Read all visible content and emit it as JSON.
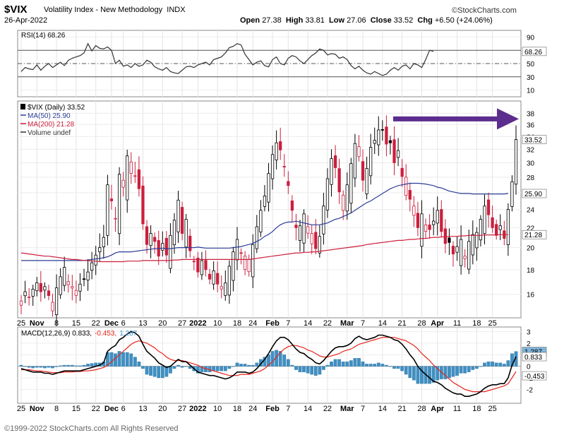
{
  "header": {
    "ticker": "$VIX",
    "description": "Volatility Index - New Methodology",
    "exchange": "INDX",
    "date": "26-Apr-2022",
    "brand": "©StockCharts.com",
    "open_label": "Open",
    "open": "27.38",
    "high_label": "High",
    "high": "33.81",
    "low_label": "Low",
    "low": "27.06",
    "close_label": "Close",
    "close": "33.52",
    "chg_label": "Chg",
    "chg": "+6.50 (+24.06%)"
  },
  "footer": {
    "copyright": "©1999-2022 StockCharts.com All Rights Reserved"
  },
  "colors": {
    "up": "#000000",
    "down": "#cc1e3c",
    "ma50": "#2c3c96",
    "ma200": "#cc1e3c",
    "arrow": "#5b2d8e",
    "macd_hist": "#3f8fc3",
    "signal": "#e8231b"
  },
  "chart_data": [
    {
      "id": "rsi",
      "type": "line",
      "legend": "RSI(14) 68.26",
      "ylim": [
        0,
        100
      ],
      "yticks": [
        10,
        30,
        50,
        70,
        90
      ],
      "ref_lines": [
        30,
        50,
        70
      ],
      "last": 68.26,
      "last_label": "68.26",
      "values": [
        38,
        44,
        42,
        41,
        48,
        40,
        46,
        50,
        44,
        48,
        52,
        47,
        55,
        58,
        60,
        62,
        66,
        80,
        69,
        77,
        73,
        72,
        75,
        70,
        50,
        55,
        46,
        48,
        44,
        50,
        46,
        48,
        55,
        52,
        45,
        42,
        40,
        44,
        38,
        36,
        35,
        40,
        45,
        46,
        44,
        48,
        50,
        52,
        48,
        56,
        58,
        60,
        66,
        74,
        76,
        80,
        78,
        64,
        56,
        48,
        52,
        54,
        47,
        45,
        56,
        60,
        50,
        48,
        58,
        62,
        60,
        54,
        50,
        56,
        62,
        66,
        72,
        70,
        63,
        65,
        64,
        58,
        60,
        56,
        47,
        42,
        46,
        40,
        36,
        34,
        38,
        35,
        32,
        34,
        40,
        44,
        40,
        46,
        48,
        42,
        50,
        48,
        44,
        56,
        70,
        68.26
      ]
    },
    {
      "id": "price",
      "type": "candlestick",
      "title": "$VIX (Daily) 33.52",
      "legend": [
        {
          "label": "MA(50) 25.90",
          "color": "#2c3c96"
        },
        {
          "label": "MA(200) 21.28",
          "color": "#cc1e3c"
        },
        {
          "label": "Volume undef",
          "color": "#333333"
        }
      ],
      "ylim": [
        14.3,
        40.3
      ],
      "scale": "log",
      "yticks": [
        16,
        18,
        20,
        22,
        24,
        26,
        28,
        30,
        32,
        34,
        36,
        38
      ],
      "last_close": 33.52,
      "last_close_label": "33.52",
      "ma50_last": 25.9,
      "ma50_label": "25.90",
      "ma200_last": 21.28,
      "ma200_label": "21.28",
      "closes": [
        15.5,
        16.2,
        15.8,
        16.4,
        16.9,
        16.2,
        16.6,
        15.9,
        15.4,
        16.5,
        17.4,
        18.2,
        17.0,
        16.6,
        16.3,
        16.8,
        17.2,
        17.8,
        18.6,
        19.3,
        20.0,
        21.0,
        27.0,
        25.0,
        23.0,
        28.4,
        27.6,
        31.0,
        30.1,
        28.2,
        26.5,
        22.4,
        20.3,
        21.4,
        20.6,
        19.2,
        20.4,
        19.3,
        21.2,
        22.8,
        25.1,
        21.4,
        22.9,
        19.7,
        18.7,
        17.8,
        18.8,
        18.0,
        17.2,
        17.9,
        16.8,
        16.6,
        16.9,
        18.3,
        19.6,
        20.8,
        19.5,
        19.2,
        18.9,
        20.3,
        22.1,
        23.9,
        25.6,
        28.5,
        31.2,
        33.0,
        31.9,
        29.4,
        26.9,
        23.9,
        22.0,
        22.2,
        23.5,
        22.1,
        21.4,
        19.9,
        21.1,
        24.4,
        27.8,
        30.6,
        29.3,
        26.1,
        25.7,
        27.0,
        29.9,
        32.9,
        32.4,
        27.6,
        29.2,
        32.3,
        33.4,
        35.1,
        35.1,
        32.8,
        33.0,
        30.0,
        31.8,
        28.1,
        28.0,
        25.2,
        24.4,
        22.0,
        23.5,
        22.3,
        21.8,
        22.7,
        23.9,
        21.6,
        20.4,
        20.5,
        19.4,
        20.1,
        20.8,
        19.2,
        20.6,
        21.3,
        21.5,
        22.9,
        24.4,
        23.4,
        22.0,
        21.2,
        22.2,
        20.9,
        24.0,
        27.4,
        33.52
      ],
      "ma50": [
        18.8,
        18.8,
        18.8,
        18.8,
        18.8,
        18.8,
        18.8,
        18.8,
        18.8,
        18.8,
        18.8,
        18.8,
        18.8,
        18.8,
        18.8,
        18.8,
        18.8,
        18.85,
        18.9,
        18.95,
        19.0,
        19.05,
        19.15,
        19.3,
        19.5,
        19.6,
        19.6,
        19.6,
        19.6,
        19.65,
        19.7,
        19.75,
        19.8,
        19.85,
        19.9,
        19.9,
        19.95,
        19.9,
        19.9,
        19.95,
        20.0,
        20.0,
        20.0,
        20.0,
        20.0,
        20.05,
        20.0,
        19.95,
        19.95,
        19.95,
        19.95,
        19.95,
        19.95,
        19.95,
        20.0,
        20.05,
        20.1,
        20.2,
        20.3,
        20.4,
        20.6,
        20.8,
        21.1,
        21.3,
        21.6,
        22.0,
        22.3,
        22.5,
        22.6,
        22.6,
        22.7,
        22.6,
        22.5,
        22.4,
        22.3,
        22.3,
        22.3,
        22.4,
        22.5,
        22.7,
        22.9,
        23.0,
        23.2,
        23.4,
        23.6,
        23.9,
        24.2,
        24.5,
        24.8,
        25.0,
        25.3,
        25.6,
        25.9,
        26.2,
        26.5,
        26.7,
        26.9,
        27.0,
        27.1,
        27.2,
        27.2,
        27.2,
        27.15,
        27.1,
        27.0,
        26.9,
        26.7,
        26.6,
        26.4,
        26.2,
        26.1,
        26.0,
        25.9,
        25.9,
        25.9,
        25.85,
        25.85,
        25.85,
        25.85,
        25.85,
        25.85,
        25.85,
        25.85,
        25.85,
        25.9
      ],
      "ma200": [
        19.5,
        19.45,
        19.4,
        19.35,
        19.3,
        19.25,
        19.2,
        19.2,
        19.15,
        19.1,
        19.05,
        19.0,
        18.95,
        18.9,
        18.9,
        18.85,
        18.8,
        18.8,
        18.75,
        18.75,
        18.7,
        18.7,
        18.7,
        18.7,
        18.7,
        18.7,
        18.7,
        18.75,
        18.75,
        18.75,
        18.75,
        18.8,
        18.8,
        18.8,
        18.8,
        18.8,
        18.8,
        18.8,
        18.8,
        18.85,
        18.85,
        18.9,
        18.9,
        18.9,
        18.9,
        18.9,
        18.9,
        18.9,
        18.9,
        18.9,
        18.9,
        18.9,
        18.9,
        18.9,
        18.9,
        18.9,
        18.9,
        18.9,
        18.9,
        18.95,
        19.0,
        19.05,
        19.1,
        19.15,
        19.2,
        19.25,
        19.3,
        19.35,
        19.4,
        19.45,
        19.5,
        19.5,
        19.55,
        19.55,
        19.6,
        19.6,
        19.65,
        19.7,
        19.75,
        19.8,
        19.85,
        19.9,
        19.95,
        20.0,
        20.05,
        20.1,
        20.15,
        20.2,
        20.3,
        20.35,
        20.4,
        20.45,
        20.5,
        20.55,
        20.6,
        20.65,
        20.7,
        20.7,
        20.75,
        20.8,
        20.8,
        20.85,
        20.9,
        20.9,
        20.95,
        21.0,
        21.0,
        21.05,
        21.05,
        21.1,
        21.1,
        21.1,
        21.15,
        21.15,
        21.2,
        21.2,
        21.2,
        21.2,
        21.25,
        21.25,
        21.25,
        21.25,
        21.28,
        21.28,
        21.28
      ]
    },
    {
      "id": "macd",
      "type": "line+histogram",
      "legend": "MACD(12,26,9) 0.833, -0.453, 1.287",
      "legend_parts": [
        "MACD(12,26,9) 0.833,",
        "-0.453,",
        "1.287"
      ],
      "ylim": [
        -3.2,
        3.4
      ],
      "yticks": [
        -2,
        -1,
        0,
        1,
        2,
        3
      ],
      "macd_last": 0.833,
      "macd_label": "0.833",
      "signal_last": -0.453,
      "signal_label": "-0.453",
      "hist_last": 1.287,
      "hist_label": "1.287",
      "macd": [
        -0.2,
        -0.3,
        -0.4,
        -0.5,
        -0.5,
        -0.5,
        -0.6,
        -0.6,
        -0.7,
        -0.6,
        -0.5,
        -0.4,
        -0.4,
        -0.4,
        -0.4,
        -0.4,
        -0.3,
        -0.2,
        -0.1,
        0.0,
        0.1,
        0.3,
        1.3,
        1.6,
        1.8,
        2.3,
        2.5,
        2.8,
        3.0,
        2.9,
        2.6,
        1.9,
        1.3,
        1.0,
        0.7,
        0.3,
        0.1,
        -0.1,
        0.0,
        0.3,
        0.6,
        0.4,
        0.4,
        0.1,
        -0.2,
        -0.5,
        -0.6,
        -0.7,
        -0.8,
        -0.8,
        -0.9,
        -1.0,
        -1.1,
        -1.0,
        -0.8,
        -0.5,
        -0.5,
        -0.5,
        -0.6,
        -0.5,
        -0.2,
        0.2,
        0.6,
        1.1,
        1.7,
        2.2,
        2.5,
        2.5,
        2.3,
        1.9,
        1.5,
        1.2,
        1.1,
        0.8,
        0.6,
        0.3,
        0.2,
        0.5,
        0.9,
        1.3,
        1.6,
        1.7,
        1.7,
        1.8,
        2.0,
        2.4,
        2.6,
        2.4,
        2.3,
        2.4,
        2.5,
        2.7,
        2.7,
        2.6,
        2.5,
        2.3,
        2.2,
        1.9,
        1.5,
        1.0,
        0.6,
        0.0,
        -0.4,
        -0.7,
        -1.0,
        -1.3,
        -1.4,
        -1.6,
        -1.9,
        -2.1,
        -2.3,
        -2.4,
        -2.4,
        -2.6,
        -2.6,
        -2.5,
        -2.4,
        -2.2,
        -1.9,
        -1.7,
        -1.6,
        -1.6,
        -1.5,
        -1.5,
        -1.0,
        0.1,
        0.833
      ],
      "signal": [
        -0.3,
        -0.3,
        -0.3,
        -0.35,
        -0.4,
        -0.4,
        -0.45,
        -0.5,
        -0.55,
        -0.55,
        -0.55,
        -0.5,
        -0.5,
        -0.5,
        -0.45,
        -0.45,
        -0.4,
        -0.4,
        -0.35,
        -0.3,
        -0.2,
        -0.1,
        0.1,
        0.4,
        0.7,
        1.0,
        1.3,
        1.6,
        1.9,
        2.1,
        2.2,
        2.1,
        2.0,
        1.8,
        1.6,
        1.3,
        1.1,
        0.8,
        0.6,
        0.5,
        0.5,
        0.5,
        0.4,
        0.3,
        0.2,
        0.1,
        -0.1,
        -0.2,
        -0.3,
        -0.4,
        -0.5,
        -0.6,
        -0.7,
        -0.8,
        -0.8,
        -0.8,
        -0.7,
        -0.7,
        -0.7,
        -0.6,
        -0.5,
        -0.4,
        -0.2,
        0.1,
        0.4,
        0.8,
        1.2,
        1.5,
        1.7,
        1.8,
        1.8,
        1.7,
        1.6,
        1.4,
        1.3,
        1.1,
        0.9,
        0.8,
        0.8,
        0.9,
        1.0,
        1.1,
        1.3,
        1.4,
        1.5,
        1.7,
        1.9,
        2.0,
        2.1,
        2.2,
        2.3,
        2.4,
        2.5,
        2.5,
        2.5,
        2.5,
        2.4,
        2.3,
        2.2,
        2.0,
        1.8,
        1.5,
        1.1,
        0.8,
        0.5,
        0.1,
        -0.2,
        -0.5,
        -0.8,
        -1.1,
        -1.4,
        -1.6,
        -1.8,
        -2.0,
        -2.1,
        -2.2,
        -2.2,
        -2.2,
        -2.2,
        -2.1,
        -2.0,
        -1.9,
        -1.8,
        -1.7,
        -1.5,
        -1.0,
        -0.453
      ]
    }
  ],
  "x_axis": {
    "labels": [
      {
        "i": 0,
        "text": "25",
        "bold": false
      },
      {
        "i": 4,
        "text": "Nov",
        "bold": true
      },
      {
        "i": 9,
        "text": "8",
        "bold": false
      },
      {
        "i": 14,
        "text": "15",
        "bold": false
      },
      {
        "i": 19,
        "text": "22",
        "bold": false
      },
      {
        "i": 23,
        "text": "Dec",
        "bold": true
      },
      {
        "i": 26,
        "text": "6",
        "bold": false
      },
      {
        "i": 31,
        "text": "13",
        "bold": false
      },
      {
        "i": 36,
        "text": "20",
        "bold": false
      },
      {
        "i": 41,
        "text": "27",
        "bold": false
      },
      {
        "i": 45,
        "text": "2022",
        "bold": true
      },
      {
        "i": 50,
        "text": "10",
        "bold": false
      },
      {
        "i": 55,
        "text": "18",
        "bold": false
      },
      {
        "i": 59,
        "text": "24",
        "bold": false
      },
      {
        "i": 64,
        "text": "Feb",
        "bold": true
      },
      {
        "i": 68,
        "text": "7",
        "bold": false
      },
      {
        "i": 73,
        "text": "14",
        "bold": false
      },
      {
        "i": 78,
        "text": "22",
        "bold": false
      },
      {
        "i": 83,
        "text": "Mar",
        "bold": true
      },
      {
        "i": 87,
        "text": "7",
        "bold": false
      },
      {
        "i": 92,
        "text": "14",
        "bold": false
      },
      {
        "i": 97,
        "text": "21",
        "bold": false
      },
      {
        "i": 102,
        "text": "28",
        "bold": false
      },
      {
        "i": 106,
        "text": "Apr",
        "bold": true
      },
      {
        "i": 111,
        "text": "11",
        "bold": false
      },
      {
        "i": 116,
        "text": "18",
        "bold": false
      },
      {
        "i": 120,
        "text": "25",
        "bold": false
      }
    ]
  }
}
